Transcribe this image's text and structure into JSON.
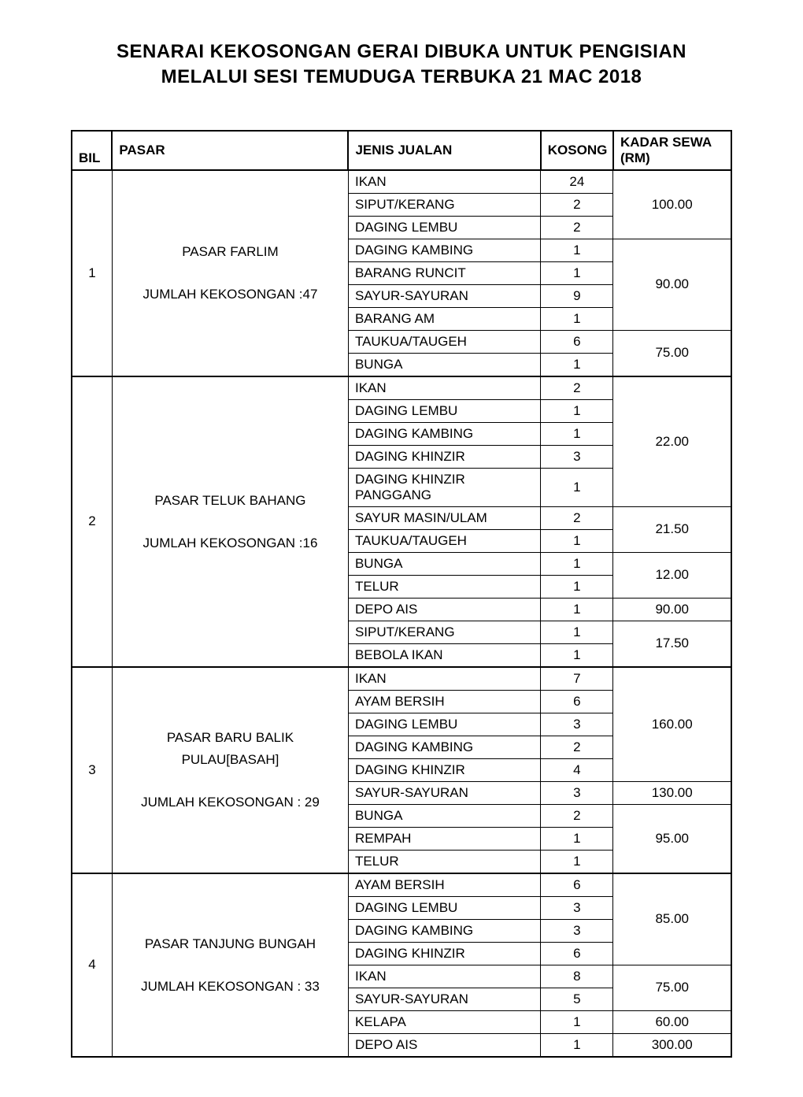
{
  "title_line1": "SENARAI KEKOSONGAN GERAI DIBUKA UNTUK PENGISIAN",
  "title_line2": "MELALUI SESI TEMUDUGA TERBUKA 21 MAC 2018",
  "columns": {
    "bil": "BIL",
    "pasar": "PASAR",
    "jenis": "JENIS JUALAN",
    "kosong": "KOSONG",
    "kadar": "KADAR SEWA (RM)"
  },
  "sections": [
    {
      "bil": "1",
      "pasar_line1": "PASAR FARLIM",
      "pasar_line2": "JUMLAH KEKOSONGAN :47",
      "rows": [
        {
          "jenis": "IKAN",
          "kosong": "24"
        },
        {
          "jenis": "SIPUT/KERANG",
          "kosong": "2"
        },
        {
          "jenis": "DAGING LEMBU",
          "kosong": "2"
        },
        {
          "jenis": "DAGING KAMBING",
          "kosong": "1"
        },
        {
          "jenis": "BARANG RUNCIT",
          "kosong": "1"
        },
        {
          "jenis": "SAYUR-SAYURAN",
          "kosong": "9"
        },
        {
          "jenis": "BARANG AM",
          "kosong": "1"
        },
        {
          "jenis": "TAUKUA/TAUGEH",
          "kosong": "6"
        },
        {
          "jenis": "BUNGA",
          "kosong": "1"
        }
      ],
      "kadar": [
        {
          "value": "100.00",
          "span": 3
        },
        {
          "value": "90.00",
          "span": 4
        },
        {
          "value": "75.00",
          "span": 2
        }
      ]
    },
    {
      "bil": "2",
      "pasar_line1": "PASAR TELUK BAHANG",
      "pasar_line2": "JUMLAH KEKOSONGAN :16",
      "rows": [
        {
          "jenis": "IKAN",
          "kosong": "2"
        },
        {
          "jenis": "DAGING LEMBU",
          "kosong": "1"
        },
        {
          "jenis": "DAGING KAMBING",
          "kosong": "1"
        },
        {
          "jenis": "DAGING KHINZIR",
          "kosong": "3"
        },
        {
          "jenis": "DAGING KHINZIR PANGGANG",
          "kosong": "1"
        },
        {
          "jenis": "SAYUR MASIN/ULAM",
          "kosong": "2"
        },
        {
          "jenis": "TAUKUA/TAUGEH",
          "kosong": "1"
        },
        {
          "jenis": "BUNGA",
          "kosong": "1"
        },
        {
          "jenis": "TELUR",
          "kosong": "1"
        },
        {
          "jenis": "DEPO AIS",
          "kosong": "1"
        },
        {
          "jenis": "SIPUT/KERANG",
          "kosong": "1"
        },
        {
          "jenis": "BEBOLA IKAN",
          "kosong": "1"
        }
      ],
      "kadar": [
        {
          "value": "22.00",
          "span": 5
        },
        {
          "value": "21.50",
          "span": 2
        },
        {
          "value": "12.00",
          "span": 2
        },
        {
          "value": "90.00",
          "span": 1
        },
        {
          "value": "17.50",
          "span": 2
        }
      ]
    },
    {
      "bil": "3",
      "pasar_line1": "PASAR BARU BALIK PULAU[BASAH]",
      "pasar_line2": "JUMLAH KEKOSONGAN : 29",
      "rows": [
        {
          "jenis": "IKAN",
          "kosong": "7"
        },
        {
          "jenis": "AYAM BERSIH",
          "kosong": "6"
        },
        {
          "jenis": "DAGING LEMBU",
          "kosong": "3"
        },
        {
          "jenis": "DAGING KAMBING",
          "kosong": "2"
        },
        {
          "jenis": "DAGING KHINZIR",
          "kosong": "4"
        },
        {
          "jenis": "SAYUR-SAYURAN",
          "kosong": "3"
        },
        {
          "jenis": "BUNGA",
          "kosong": "2"
        },
        {
          "jenis": "REMPAH",
          "kosong": "1"
        },
        {
          "jenis": "TELUR",
          "kosong": "1"
        }
      ],
      "kadar": [
        {
          "value": "160.00",
          "span": 5
        },
        {
          "value": "130.00",
          "span": 1
        },
        {
          "value": "95.00",
          "span": 3
        }
      ]
    },
    {
      "bil": "4",
      "pasar_line1": "PASAR TANJUNG BUNGAH",
      "pasar_line2": "JUMLAH KEKOSONGAN : 33",
      "rows": [
        {
          "jenis": "AYAM BERSIH",
          "kosong": "6"
        },
        {
          "jenis": "DAGING LEMBU",
          "kosong": "3"
        },
        {
          "jenis": "DAGING KAMBING",
          "kosong": "3"
        },
        {
          "jenis": "DAGING KHINZIR",
          "kosong": "6"
        },
        {
          "jenis": "IKAN",
          "kosong": "8"
        },
        {
          "jenis": "SAYUR-SAYURAN",
          "kosong": "5"
        },
        {
          "jenis": "KELAPA",
          "kosong": "1"
        },
        {
          "jenis": "DEPO AIS",
          "kosong": "1"
        }
      ],
      "kadar": [
        {
          "value": "85.00",
          "span": 4
        },
        {
          "value": "75.00",
          "span": 2
        },
        {
          "value": "60.00",
          "span": 1
        },
        {
          "value": "300.00",
          "span": 1
        }
      ]
    }
  ]
}
